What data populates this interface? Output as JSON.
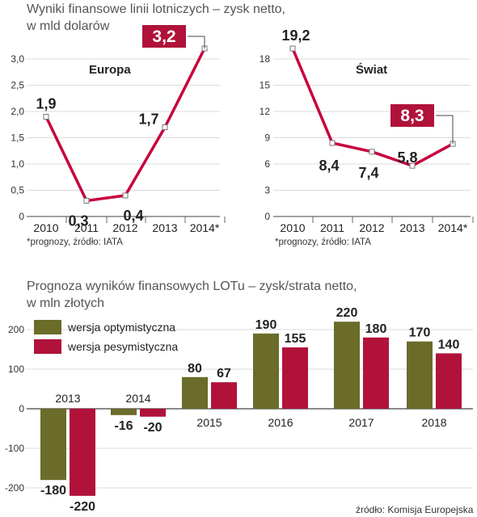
{
  "title_top_line1": "Wyniki finansowe linii lotniczych – zysk netto,",
  "title_top_line2": "w mld dolarów",
  "note_left": "*prognozy, źródło: IATA",
  "note_right": "*prognozy, źródło: IATA",
  "title_bottom_line1": "Prognoza wyników finansowych LOTu – zysk/strata netto,",
  "title_bottom_line2": "w mln złotych",
  "source_bottom": "źródło: Komisja Europejska",
  "colors": {
    "line": "#c8003c",
    "optimistic": "#6b6b2a",
    "pessimistic": "#b0123a",
    "highlight_box": "#b0123a"
  },
  "chart_data": [
    {
      "type": "line",
      "title": "Europa",
      "categories": [
        "2010",
        "2011",
        "2012",
        "2013",
        "2014*"
      ],
      "values": [
        1.9,
        0.3,
        0.4,
        1.7,
        3.2
      ],
      "value_labels": [
        "1,9",
        "0,3",
        "0,4",
        "1,7",
        "3,2"
      ],
      "highlight_index": 4,
      "ylim": [
        0,
        3.0
      ],
      "yticks": [
        0,
        0.5,
        1.0,
        1.5,
        2.0,
        2.5,
        3.0
      ],
      "ytick_labels": [
        "0",
        "0,5",
        "1,0",
        "1,5",
        "2,0",
        "2,5",
        "3,0"
      ]
    },
    {
      "type": "line",
      "title": "Świat",
      "categories": [
        "2010",
        "2011",
        "2012",
        "2013",
        "2014*"
      ],
      "values": [
        19.2,
        8.4,
        7.4,
        5.8,
        8.3
      ],
      "value_labels": [
        "19,2",
        "8,4",
        "7,4",
        "5,8",
        "8,3"
      ],
      "highlight_index": 4,
      "ylim": [
        0,
        18
      ],
      "yticks": [
        0,
        3,
        6,
        9,
        12,
        15,
        18
      ],
      "ytick_labels": [
        "0",
        "3",
        "6",
        "9",
        "12",
        "15",
        "18"
      ]
    },
    {
      "type": "bar",
      "categories": [
        "2013",
        "2014",
        "2015",
        "2016",
        "2017",
        "2018"
      ],
      "series": [
        {
          "name": "wersja optymistyczna",
          "values": [
            -180,
            -16,
            80,
            190,
            220,
            170
          ]
        },
        {
          "name": "wersja pesymistyczna",
          "values": [
            -220,
            -20,
            67,
            155,
            180,
            140
          ]
        }
      ],
      "ylim": [
        -200,
        200
      ],
      "yticks": [
        -200,
        -100,
        0,
        100,
        200
      ],
      "ytick_labels": [
        "-200",
        "-100",
        "0",
        "100",
        "200"
      ]
    }
  ]
}
